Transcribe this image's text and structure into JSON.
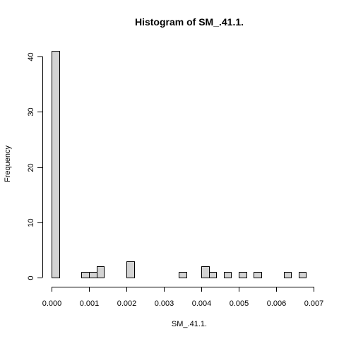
{
  "chart_data": {
    "type": "bar",
    "title": "Histogram of SM_.41.1.",
    "xlabel": "SM_.41.1.",
    "ylabel": "Frequency",
    "xlim": [
      0.0,
      0.007
    ],
    "ylim": [
      0,
      42
    ],
    "x_ticks": [
      0.0,
      0.001,
      0.002,
      0.003,
      0.004,
      0.005,
      0.006,
      0.007
    ],
    "x_tick_labels": [
      "0.000",
      "0.001",
      "0.002",
      "0.003",
      "0.004",
      "0.005",
      "0.006",
      "0.007"
    ],
    "y_ticks": [
      0,
      10,
      20,
      30,
      40
    ],
    "y_tick_labels": [
      "0",
      "10",
      "20",
      "30",
      "40"
    ],
    "bin_width": 0.0002,
    "bins": [
      {
        "start": 0.0,
        "count": 41
      },
      {
        "start": 0.0008,
        "count": 1
      },
      {
        "start": 0.001,
        "count": 1
      },
      {
        "start": 0.0012,
        "count": 2
      },
      {
        "start": 0.002,
        "count": 3
      },
      {
        "start": 0.0034,
        "count": 1
      },
      {
        "start": 0.004,
        "count": 2
      },
      {
        "start": 0.0042,
        "count": 1
      },
      {
        "start": 0.0046,
        "count": 1
      },
      {
        "start": 0.005,
        "count": 1
      },
      {
        "start": 0.0054,
        "count": 1
      },
      {
        "start": 0.0062,
        "count": 1
      },
      {
        "start": 0.0066,
        "count": 1
      }
    ],
    "grid": false,
    "legend": "none",
    "bar_fill": "#d3d3d3",
    "bar_stroke": "#000000"
  }
}
